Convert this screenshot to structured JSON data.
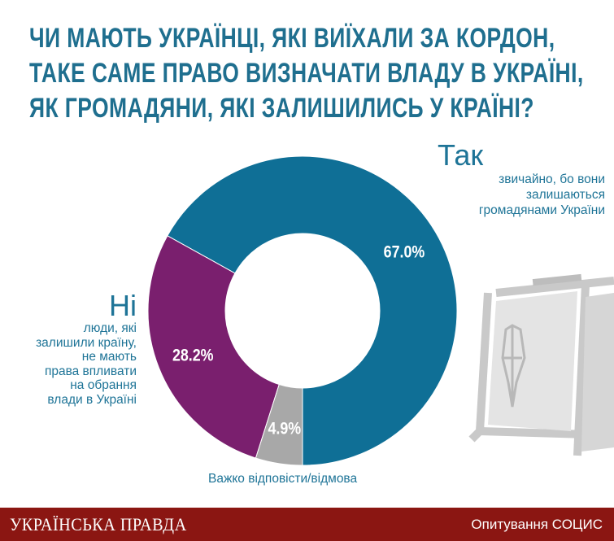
{
  "title_lines": [
    "ЧИ МАЮТЬ УКРАЇНЦІ, ЯКІ ВИЇХАЛИ ЗА КОРДОН,",
    "ТАКЕ САМЕ ПРАВО ВИЗНАЧАТИ ВЛАДУ В УКРАЇНІ,",
    "ЯК ГРОМАДЯНИ, ЯКІ ЗАЛИШИЛИСЬ У КРАЇНІ?"
  ],
  "labels": {
    "yes_title": "Так",
    "yes_desc_lines": [
      "звичайно, бо вони",
      "залишаються",
      "громадянами України"
    ],
    "no_title": "Ні",
    "no_desc_lines": [
      "люди, які",
      "залишили країну,",
      "не мають",
      "права впливати",
      "на обрання",
      "влади в Україні"
    ],
    "dk_label": "Важко відповісти/відмова"
  },
  "footer": {
    "logo_text": "УКРАЇНСЬКА ПРАВДА",
    "source": "Опитування СОЦИС"
  },
  "colors": {
    "title": "#1f6f8f",
    "yes": "#0f6f96",
    "no": "#7a1f6e",
    "dk": "#a8a8a8",
    "footer": "#8b1612"
  },
  "chart_data": {
    "type": "pie",
    "donut": true,
    "start": "bottom",
    "direction": "counterclockwise",
    "slices": [
      {
        "label": "Так",
        "value": 67.0,
        "display": "67.0%",
        "color": "#0f6f96"
      },
      {
        "label": "Ні",
        "value": 28.2,
        "display": "28.2%",
        "color": "#7a1f6e"
      },
      {
        "label": "Важко відповісти/відмова",
        "value": 4.9,
        "display": "4.9%",
        "color": "#a8a8a8"
      }
    ]
  }
}
